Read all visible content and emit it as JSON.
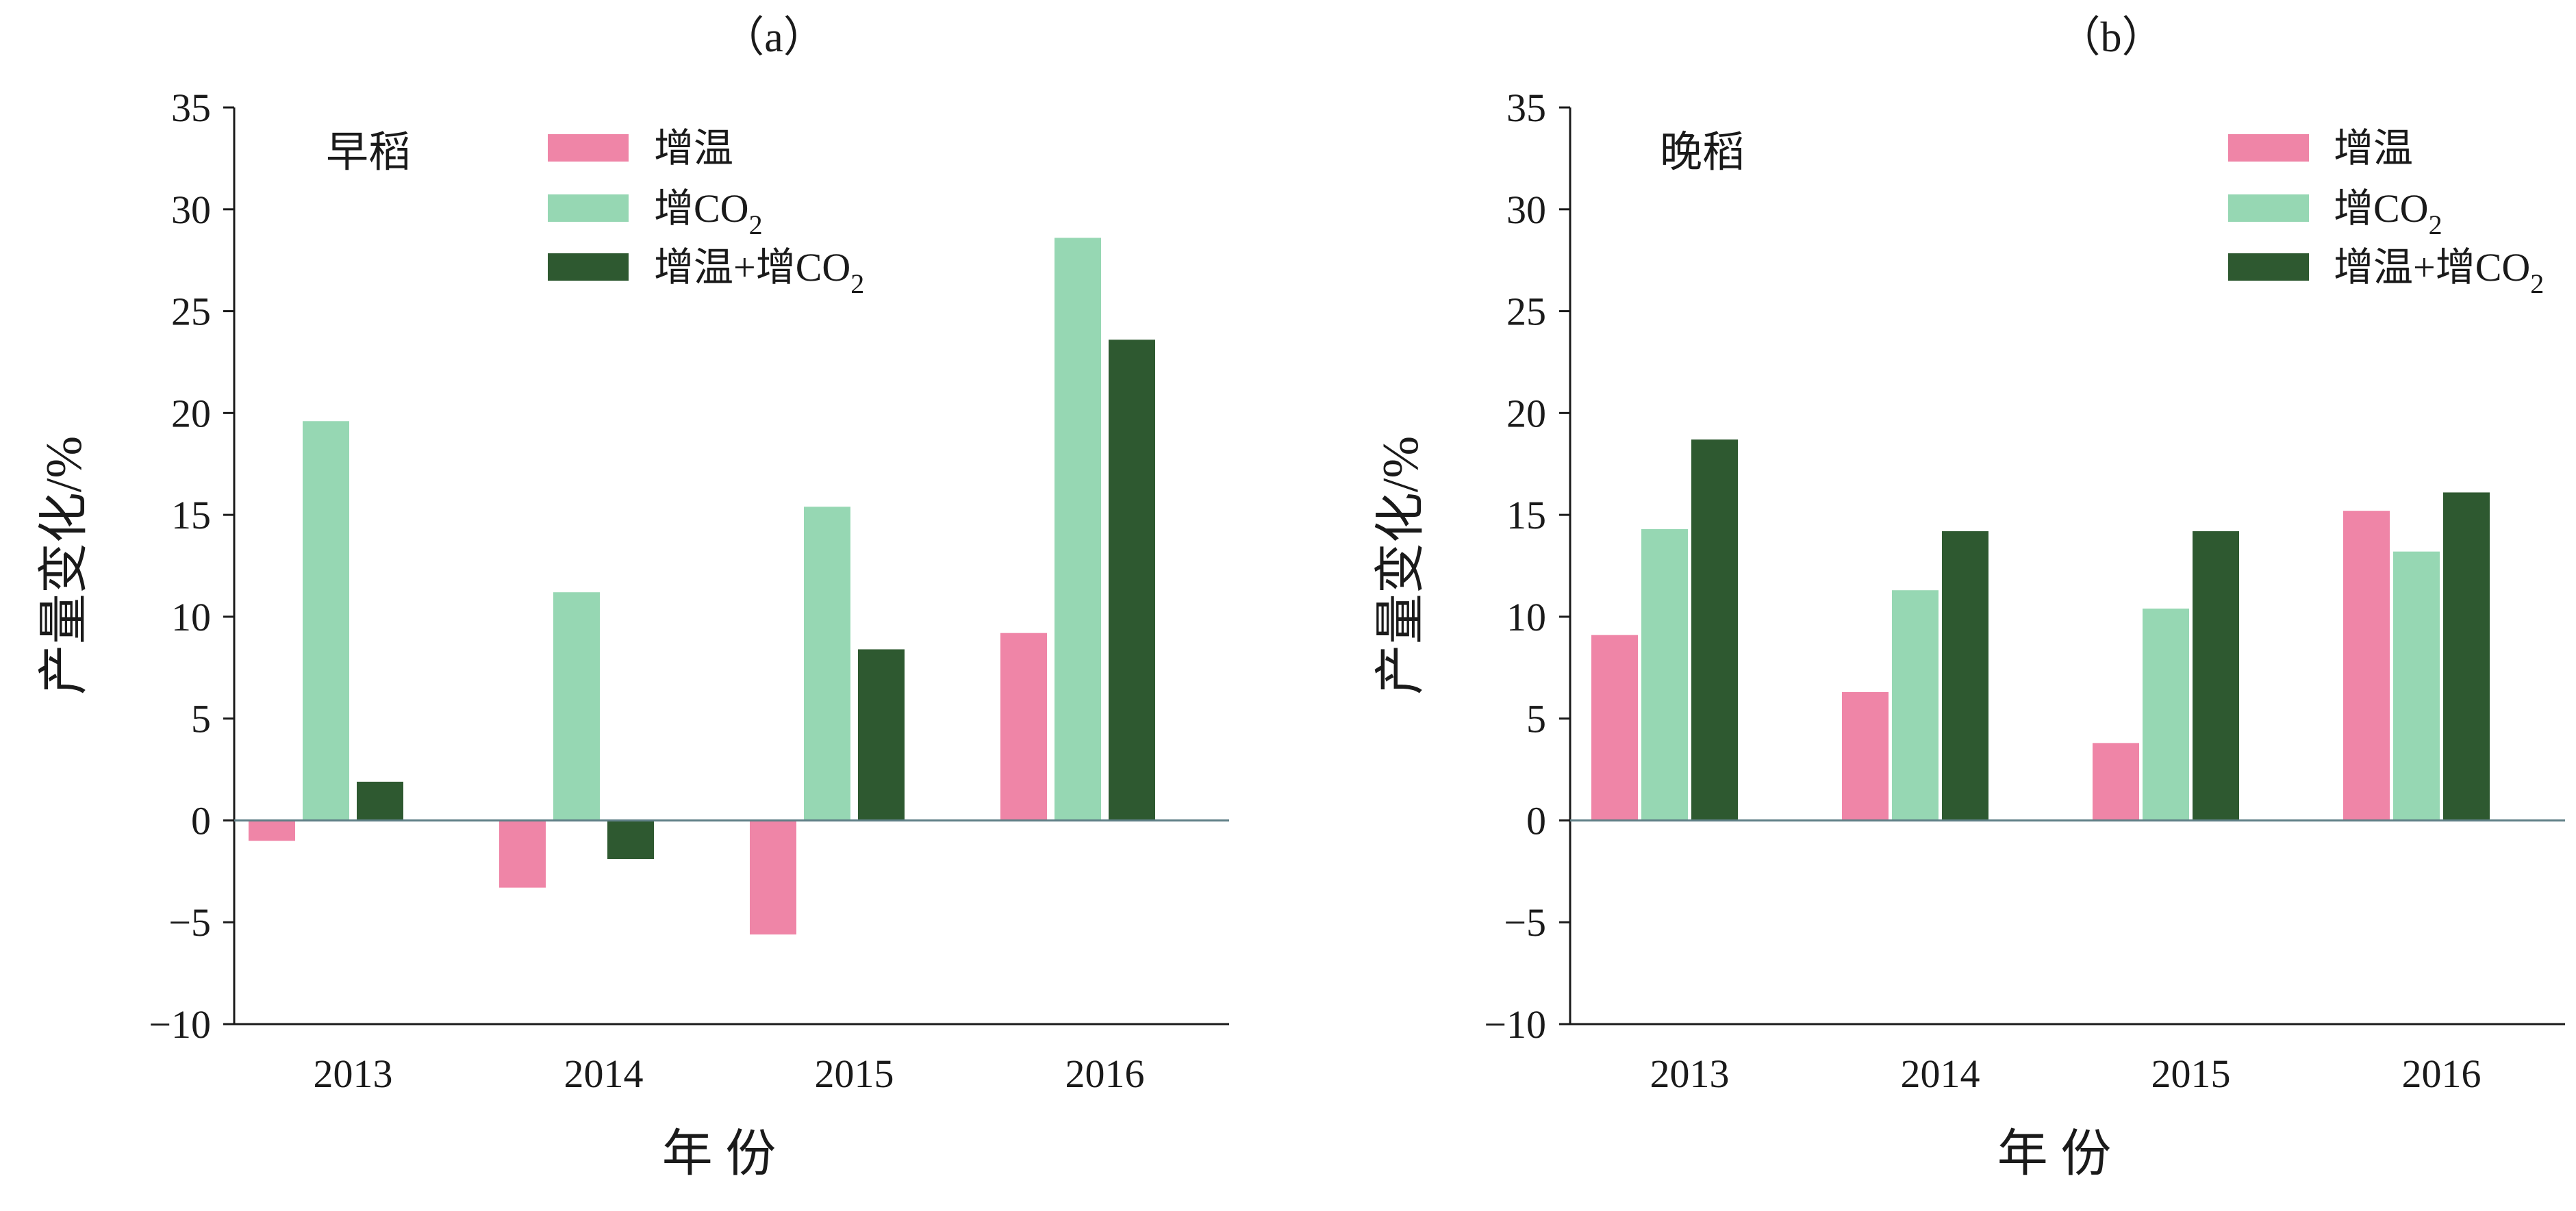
{
  "colors": {
    "warming": "#ef85a7",
    "co2": "#96d7b3",
    "warming_co2": "#2e5930",
    "axis": "#1a1a1a",
    "zero_line": "#5f7f86"
  },
  "chart_data": [
    {
      "type": "bar",
      "title": "（a）",
      "subplot_label": "早稻",
      "xlabel": "年 份",
      "ylabel": "产量变化/%",
      "ylim": [
        -10,
        35
      ],
      "yticks": [
        -10,
        -5,
        0,
        5,
        10,
        15,
        20,
        25,
        30,
        35
      ],
      "ytick_labels": [
        "−10",
        "−5",
        "0",
        "5",
        "10",
        "15",
        "20",
        "25",
        "30",
        "35"
      ],
      "categories": [
        "2013",
        "2014",
        "2015",
        "2016"
      ],
      "legend_position": "top-center",
      "grid": false,
      "series": [
        {
          "name": "增温",
          "name_main": "增温",
          "name_sub": "",
          "name_tail": "",
          "color_key": "warming",
          "values": [
            -1.0,
            -3.3,
            -5.6,
            9.2
          ]
        },
        {
          "name": "增CO2",
          "name_main": "增CO",
          "name_sub": "2",
          "name_tail": "",
          "color_key": "co2",
          "values": [
            19.6,
            11.2,
            15.4,
            28.6
          ]
        },
        {
          "name": "增温+增CO2",
          "name_main": "增温+增CO",
          "name_sub": "2",
          "name_tail": "",
          "color_key": "warming_co2",
          "values": [
            1.9,
            -1.9,
            8.4,
            23.6
          ]
        }
      ]
    },
    {
      "type": "bar",
      "title": "（b）",
      "subplot_label": "晚稻",
      "xlabel": "年 份",
      "ylabel": "产量变化/%",
      "ylim": [
        -10,
        35
      ],
      "yticks": [
        -10,
        -5,
        0,
        5,
        10,
        15,
        20,
        25,
        30,
        35
      ],
      "ytick_labels": [
        "−10",
        "−5",
        "0",
        "5",
        "10",
        "15",
        "20",
        "25",
        "30",
        "35"
      ],
      "categories": [
        "2013",
        "2014",
        "2015",
        "2016"
      ],
      "legend_position": "top-right",
      "grid": false,
      "series": [
        {
          "name": "增温",
          "name_main": "增温",
          "name_sub": "",
          "name_tail": "",
          "color_key": "warming",
          "values": [
            9.1,
            6.3,
            3.8,
            15.2
          ]
        },
        {
          "name": "增CO2",
          "name_main": "增CO",
          "name_sub": "2",
          "name_tail": "",
          "color_key": "co2",
          "values": [
            14.3,
            11.3,
            10.4,
            13.2
          ]
        },
        {
          "name": "增温+增CO2",
          "name_main": "增温+增CO",
          "name_sub": "2",
          "name_tail": "",
          "color_key": "warming_co2",
          "values": [
            18.7,
            14.2,
            14.2,
            16.1
          ]
        }
      ]
    }
  ]
}
